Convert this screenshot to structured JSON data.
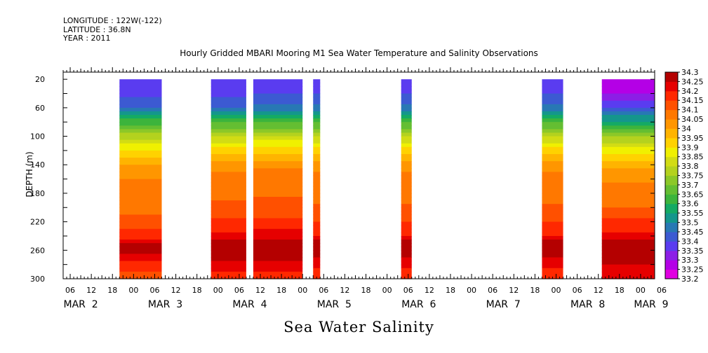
{
  "header": {
    "longitude": "LONGITUDE : 122W(-122)",
    "latitude": "LATITUDE : 36.8N",
    "year": "YEAR : 2011"
  },
  "title": "Hourly Gridded MBARI Mooring M1 Sea Water Temperature and Salinity Observations",
  "footer": "Sea Water Salinity",
  "chart_data": {
    "type": "heatmap",
    "title": "Hourly Gridded MBARI Mooring M1 Sea Water Temperature and Salinity Observations",
    "xlabel": "",
    "ylabel": "DEPTH (m)",
    "x_units": "hours since MAR 2 00:00, 2011",
    "xlim": [
      4,
      172
    ],
    "ylim": [
      300,
      10
    ],
    "y_ticks": [
      20,
      60,
      100,
      140,
      180,
      220,
      260,
      300
    ],
    "x_tick_labels": [
      "06",
      "12",
      "18",
      "00",
      "06",
      "12",
      "18",
      "00",
      "06",
      "12",
      "18",
      "00",
      "06",
      "12",
      "18",
      "00",
      "06",
      "12",
      "18",
      "00",
      "06",
      "12",
      "18",
      "00",
      "06",
      "12",
      "18",
      "00",
      "06"
    ],
    "x_tick_hours": [
      6,
      12,
      18,
      24,
      30,
      36,
      42,
      48,
      54,
      60,
      66,
      72,
      78,
      84,
      90,
      96,
      102,
      108,
      114,
      120,
      126,
      132,
      138,
      144,
      150,
      156,
      162,
      168,
      174
    ],
    "date_labels": [
      {
        "text": "MAR  2",
        "hour": 9
      },
      {
        "text": "MAR  3",
        "hour": 33
      },
      {
        "text": "MAR  4",
        "hour": 57
      },
      {
        "text": "MAR  5",
        "hour": 81
      },
      {
        "text": "MAR  6",
        "hour": 105
      },
      {
        "text": "MAR  7",
        "hour": 129
      },
      {
        "text": "MAR  8",
        "hour": 153
      },
      {
        "text": "MAR  9",
        "hour": 171
      }
    ],
    "colorbar": {
      "levels": [
        33.2,
        33.25,
        33.3,
        33.35,
        33.4,
        33.45,
        33.5,
        33.55,
        33.6,
        33.65,
        33.7,
        33.75,
        33.8,
        33.85,
        33.9,
        33.95,
        34,
        34.05,
        34.1,
        34.15,
        34.2,
        34.25,
        34.3
      ],
      "level_labels": [
        "33.2",
        "33.25",
        "33.3",
        "33.35",
        "33.4",
        "33.45",
        "33.5",
        "33.55",
        "33.6",
        "33.65",
        "33.7",
        "33.75",
        "33.8",
        "33.85",
        "33.9",
        "33.95",
        "34",
        "34.05",
        "34.1",
        "34.15",
        "34.2",
        "34.25",
        "34.3"
      ],
      "colors": [
        "#e100e1",
        "#b400e6",
        "#8c1ee6",
        "#5a3cf0",
        "#3c5ad2",
        "#2878b4",
        "#14968c",
        "#14aa64",
        "#3cb43c",
        "#64be32",
        "#8cc828",
        "#b4d21e",
        "#d2dc14",
        "#f0f000",
        "#ffd200",
        "#ffb400",
        "#ff9600",
        "#ff7800",
        "#ff5000",
        "#ff2800",
        "#e60000",
        "#b40000"
      ]
    },
    "profile": {
      "depths": [
        20,
        40,
        60,
        70,
        80,
        90,
        100,
        110,
        120,
        130,
        140,
        150,
        160,
        180,
        200,
        220,
        240,
        250,
        260,
        280,
        300
      ],
      "salinity": [
        33.37,
        33.38,
        33.45,
        33.55,
        33.62,
        33.7,
        33.78,
        33.85,
        33.9,
        33.95,
        34.0,
        34.03,
        34.05,
        34.06,
        34.08,
        34.13,
        34.18,
        34.25,
        34.27,
        34.18,
        34.12
      ]
    },
    "series": [
      {
        "start_hour": 20,
        "end_hour": 32,
        "top_value": 33.37,
        "bottom_value": 34.12
      },
      {
        "start_hour": 46,
        "end_hour": 56,
        "top_value": 33.37,
        "bottom_value": 34.17
      },
      {
        "start_hour": 58,
        "end_hour": 72,
        "top_value": 33.38,
        "bottom_value": 34.17
      },
      {
        "start_hour": 75,
        "end_hour": 77,
        "top_value": 33.38,
        "bottom_value": 34.15
      },
      {
        "start_hour": 100,
        "end_hour": 103,
        "top_value": 33.38,
        "bottom_value": 34.15
      },
      {
        "start_hour": 140,
        "end_hour": 146,
        "top_value": 33.38,
        "bottom_value": 34.15
      },
      {
        "start_hour": 157,
        "end_hour": 172,
        "top_value": 33.28,
        "bottom_value": 34.2
      }
    ]
  }
}
